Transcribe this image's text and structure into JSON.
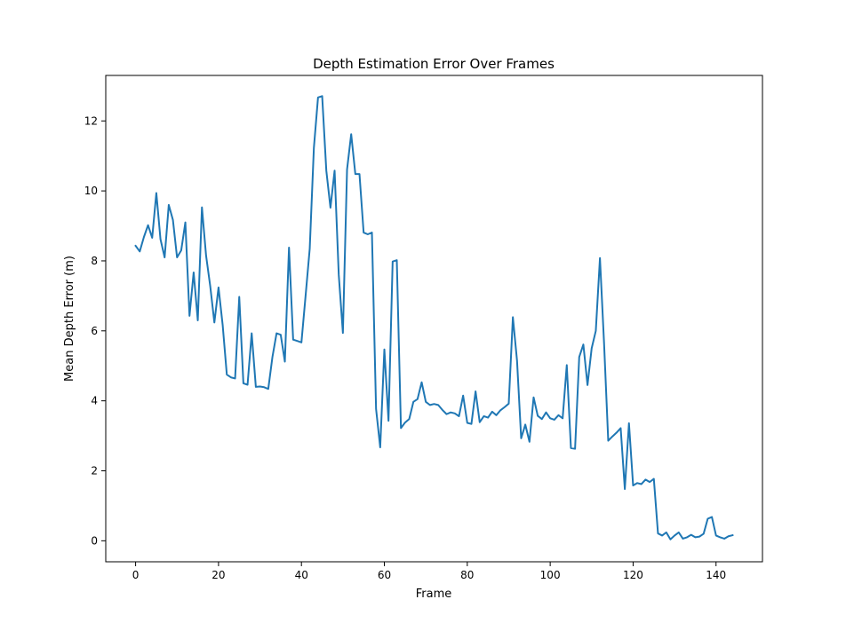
{
  "chart_data": {
    "type": "line",
    "title": "Depth Estimation Error Over Frames",
    "xlabel": "Frame",
    "ylabel": "Mean Depth Error (m)",
    "xlim": [
      -7.2,
      151.2
    ],
    "ylim": [
      -0.6,
      13.3
    ],
    "xticks": [
      0,
      20,
      40,
      60,
      80,
      100,
      120,
      140
    ],
    "yticks": [
      0,
      2,
      4,
      6,
      8,
      10,
      12
    ],
    "grid": false,
    "line_color": "#1f77b4",
    "series": [
      {
        "x": [
          0,
          1,
          2,
          3,
          4,
          5,
          6,
          7,
          8,
          9,
          10,
          11,
          12,
          13,
          14,
          15,
          16,
          17,
          18,
          19,
          20,
          21,
          22,
          23,
          24,
          25,
          26,
          27,
          28,
          29,
          30,
          31,
          32,
          33,
          34,
          35,
          36,
          37,
          38,
          39,
          40,
          41,
          42,
          43,
          44,
          45,
          46,
          47,
          48,
          49,
          50,
          51,
          52,
          53,
          54,
          55,
          56,
          57,
          58,
          59,
          60,
          61,
          62,
          63,
          64,
          65,
          66,
          67,
          68,
          69,
          70,
          71,
          72,
          73,
          74,
          75,
          76,
          77,
          78,
          79,
          80,
          81,
          82,
          83,
          84,
          85,
          86,
          87,
          88,
          89,
          90,
          91,
          92,
          93,
          94,
          95,
          96,
          97,
          98,
          99,
          100,
          101,
          102,
          103,
          104,
          105,
          106,
          107,
          108,
          109,
          110,
          111,
          112,
          113,
          114,
          115,
          116,
          117,
          118,
          119,
          120,
          121,
          122,
          123,
          124,
          125,
          126,
          127,
          128,
          129,
          130,
          131,
          132,
          133,
          134,
          135,
          136,
          137,
          138,
          139,
          140,
          141,
          142,
          143,
          144
        ],
        "y": [
          8.43,
          8.27,
          8.68,
          9.02,
          8.66,
          9.94,
          8.62,
          8.1,
          9.6,
          9.17,
          8.1,
          8.3,
          9.1,
          6.43,
          7.67,
          6.3,
          9.53,
          8.15,
          7.28,
          6.24,
          7.24,
          6.17,
          4.75,
          4.67,
          4.64,
          6.97,
          4.5,
          4.46,
          5.93,
          4.4,
          4.41,
          4.39,
          4.34,
          5.25,
          5.93,
          5.89,
          5.12,
          8.38,
          5.75,
          5.71,
          5.67,
          7.0,
          8.35,
          11.23,
          12.67,
          12.71,
          10.58,
          9.52,
          10.58,
          7.6,
          5.94,
          10.61,
          11.62,
          10.48,
          10.48,
          8.81,
          8.76,
          8.81,
          3.77,
          2.67,
          5.47,
          3.43,
          7.98,
          8.02,
          3.22,
          3.38,
          3.48,
          3.97,
          4.05,
          4.53,
          3.97,
          3.88,
          3.91,
          3.88,
          3.74,
          3.62,
          3.67,
          3.64,
          3.56,
          4.15,
          3.37,
          3.34,
          4.27,
          3.39,
          3.56,
          3.52,
          3.69,
          3.59,
          3.73,
          3.82,
          3.92,
          6.39,
          5.15,
          2.93,
          3.32,
          2.83,
          4.1,
          3.57,
          3.48,
          3.67,
          3.5,
          3.46,
          3.59,
          3.5,
          5.02,
          2.65,
          2.63,
          5.25,
          5.61,
          4.45,
          5.5,
          6.0,
          8.08,
          5.63,
          2.86,
          2.98,
          3.09,
          3.22,
          1.48,
          3.36,
          1.58,
          1.65,
          1.62,
          1.75,
          1.68,
          1.77,
          0.21,
          0.15,
          0.24,
          0.04,
          0.15,
          0.24,
          0.06,
          0.1,
          0.17,
          0.1,
          0.12,
          0.2,
          0.63,
          0.68,
          0.15,
          0.1,
          0.06,
          0.13,
          0.16
        ]
      }
    ]
  }
}
